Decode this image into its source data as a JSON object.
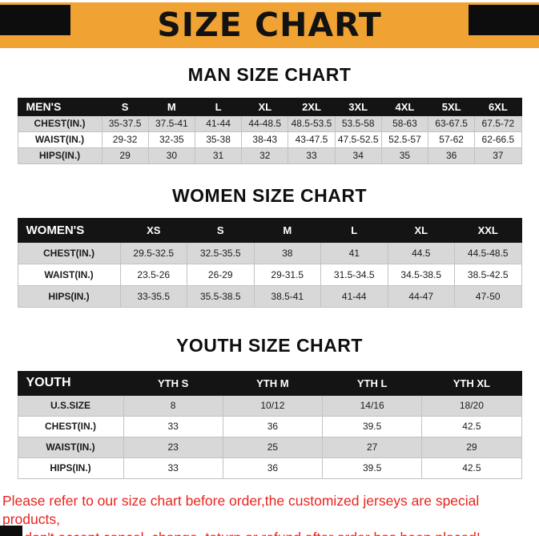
{
  "banner": {
    "title": "SIZE CHART"
  },
  "sections": [
    {
      "heading": "MAN SIZE CHART",
      "table": {
        "header": [
          "MEN'S",
          "S",
          "M",
          "L",
          "XL",
          "2XL",
          "3XL",
          "4XL",
          "5XL",
          "6XL"
        ],
        "rows": [
          {
            "label": "CHEST(IN.)",
            "values": [
              "35-37.5",
              "37.5-41",
              "41-44",
              "44-48.5",
              "48.5-53.5",
              "53.5-58",
              "58-63",
              "63-67.5",
              "67.5-72"
            ]
          },
          {
            "label": "WAIST(IN.)",
            "values": [
              "29-32",
              "32-35",
              "35-38",
              "38-43",
              "43-47.5",
              "47.5-52.5",
              "52.5-57",
              "57-62",
              "62-66.5"
            ]
          },
          {
            "label": "HIPS(IN.)",
            "values": [
              "29",
              "30",
              "31",
              "32",
              "33",
              "34",
              "35",
              "36",
              "37"
            ]
          }
        ]
      }
    },
    {
      "heading": "WOMEN SIZE CHART",
      "table": {
        "header": [
          "WOMEN'S",
          "XS",
          "S",
          "M",
          "L",
          "XL",
          "XXL"
        ],
        "rows": [
          {
            "label": "CHEST(IN.)",
            "values": [
              "29.5-32.5",
              "32.5-35.5",
              "38",
              "41",
              "44.5",
              "44.5-48.5"
            ]
          },
          {
            "label": "WAIST(IN.)",
            "values": [
              "23.5-26",
              "26-29",
              "29-31.5",
              "31.5-34.5",
              "34.5-38.5",
              "38.5-42.5"
            ]
          },
          {
            "label": "HIPS(IN.)",
            "values": [
              "33-35.5",
              "35.5-38.5",
              "38.5-41",
              "41-44",
              "44-47",
              "47-50"
            ]
          }
        ]
      }
    },
    {
      "heading": "YOUTH SIZE CHART",
      "table": {
        "header": [
          "YOUTH",
          "YTH S",
          "YTH M",
          "YTH L",
          "YTH XL"
        ],
        "rows": [
          {
            "label": "U.S.SIZE",
            "values": [
              "8",
              "10/12",
              "14/16",
              "18/20"
            ]
          },
          {
            "label": "CHEST(IN.)",
            "values": [
              "33",
              "36",
              "39.5",
              "42.5"
            ]
          },
          {
            "label": "WAIST(IN.)",
            "values": [
              "23",
              "25",
              "27",
              "29"
            ]
          },
          {
            "label": "HIPS(IN.)",
            "values": [
              "33",
              "36",
              "39.5",
              "42.5"
            ]
          }
        ]
      }
    }
  ],
  "footer": {
    "line1": "Please refer to our size chart before order,the customized jerseys are special products,",
    "line2": "we don't accept cancel, change, teturn or refund after order has been placed!"
  },
  "colors": {
    "banner_bg": "#F0A232",
    "corner_bar": "#0D0D0D",
    "table_header_bg": "#141414",
    "row_alt_bg": "#D8D8D8",
    "footer_text": "#E8241F"
  }
}
